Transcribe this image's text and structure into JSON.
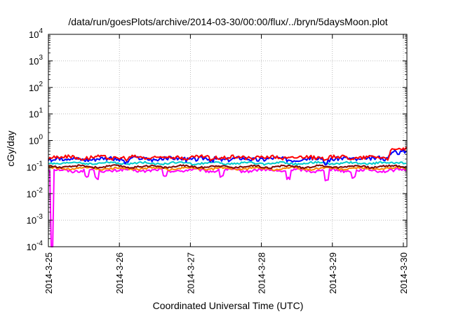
{
  "chart_data": {
    "type": "line",
    "title": "/data/run/goesPlots/archive/2014-03-30/00:00/flux/../bryn/5daysMoon.plot",
    "xlabel": "Coordinated Universal Time (UTC)",
    "ylabel": "cGy/day",
    "yscale": "log",
    "ylim": [
      0.0001,
      10000
    ],
    "xlim_days": [
      0,
      5.05
    ],
    "grid": true,
    "legend": "none",
    "x_ticks": [
      "2014-3-25",
      "2014-3-26",
      "2014-3-27",
      "2014-3-28",
      "2014-3-29",
      "2014-3-30"
    ],
    "y_ticks": [
      {
        "base": "10",
        "exp": "-4"
      },
      {
        "base": "10",
        "exp": "-3"
      },
      {
        "base": "10",
        "exp": "-2"
      },
      {
        "base": "10",
        "exp": "-1"
      },
      {
        "base": "10",
        "exp": "0"
      },
      {
        "base": "10",
        "exp": "1"
      },
      {
        "base": "10",
        "exp": "2"
      },
      {
        "base": "10",
        "exp": "3"
      },
      {
        "base": "10",
        "exp": "4"
      }
    ],
    "series": [
      {
        "color": "#ff00ff",
        "base": 0.075,
        "noise": 0.12,
        "dips": [
          [
            0.05,
            0.0005
          ],
          [
            0.55,
            0.55
          ],
          [
            0.68,
            0.5
          ],
          [
            1.65,
            0.55
          ],
          [
            2.45,
            0.6
          ],
          [
            3.38,
            0.5
          ],
          [
            3.92,
            0.45
          ],
          [
            4.3,
            0.6
          ]
        ],
        "bump": [
          [
            4.85,
            5.05,
            1.0
          ]
        ]
      },
      {
        "color": "#ff8800",
        "base": 0.088,
        "noise": 0.08,
        "dips": [],
        "bump": [
          [
            4.85,
            5.05,
            1.05
          ]
        ]
      },
      {
        "color": "#800000",
        "base": 0.105,
        "noise": 0.08,
        "dips": [],
        "bump": [
          [
            4.85,
            5.05,
            1.05
          ]
        ]
      },
      {
        "color": "#00cccc",
        "base": 0.14,
        "noise": 0.08,
        "dips": [],
        "bump": [
          [
            4.85,
            5.05,
            1.1
          ]
        ]
      },
      {
        "color": "#0000ff",
        "base": 0.205,
        "noise": 0.18,
        "dips": [
          [
            1.1,
            0.7
          ],
          [
            2.3,
            0.75
          ],
          [
            3.9,
            0.7
          ]
        ],
        "bump": [
          [
            4.78,
            5.05,
            1.9
          ]
        ]
      },
      {
        "color": "#ff0000",
        "base": 0.235,
        "noise": 0.16,
        "dips": [
          [
            1.1,
            0.75
          ],
          [
            2.3,
            0.8
          ],
          [
            3.9,
            0.75
          ]
        ],
        "bump": [
          [
            4.78,
            5.05,
            2.0
          ]
        ]
      }
    ]
  }
}
